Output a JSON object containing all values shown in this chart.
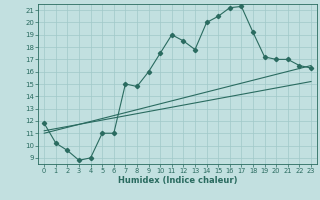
{
  "xlabel": "Humidex (Indice chaleur)",
  "bg_color": "#c2e0e0",
  "line_color": "#2a6b60",
  "grid_color": "#a0c8c8",
  "xlim": [
    -0.5,
    23.5
  ],
  "ylim": [
    8.5,
    21.5
  ],
  "xticks": [
    0,
    1,
    2,
    3,
    4,
    5,
    6,
    7,
    8,
    9,
    10,
    11,
    12,
    13,
    14,
    15,
    16,
    17,
    18,
    19,
    20,
    21,
    22,
    23
  ],
  "yticks": [
    9,
    10,
    11,
    12,
    13,
    14,
    15,
    16,
    17,
    18,
    19,
    20,
    21
  ],
  "main_line_x": [
    0,
    1,
    2,
    3,
    4,
    5,
    6,
    7,
    8,
    9,
    10,
    11,
    12,
    13,
    14,
    15,
    16,
    17,
    18,
    19,
    20,
    21,
    22,
    23
  ],
  "main_line_y": [
    11.8,
    10.2,
    9.6,
    8.8,
    9.0,
    11.0,
    11.0,
    15.0,
    14.8,
    16.0,
    17.5,
    19.0,
    18.5,
    17.8,
    20.0,
    20.5,
    21.2,
    21.3,
    19.2,
    17.2,
    17.0,
    17.0,
    16.5,
    16.3
  ],
  "line2_x": [
    0,
    23
  ],
  "line2_y": [
    11.2,
    15.2
  ],
  "line3_x": [
    0,
    23
  ],
  "line3_y": [
    11.0,
    16.5
  ]
}
